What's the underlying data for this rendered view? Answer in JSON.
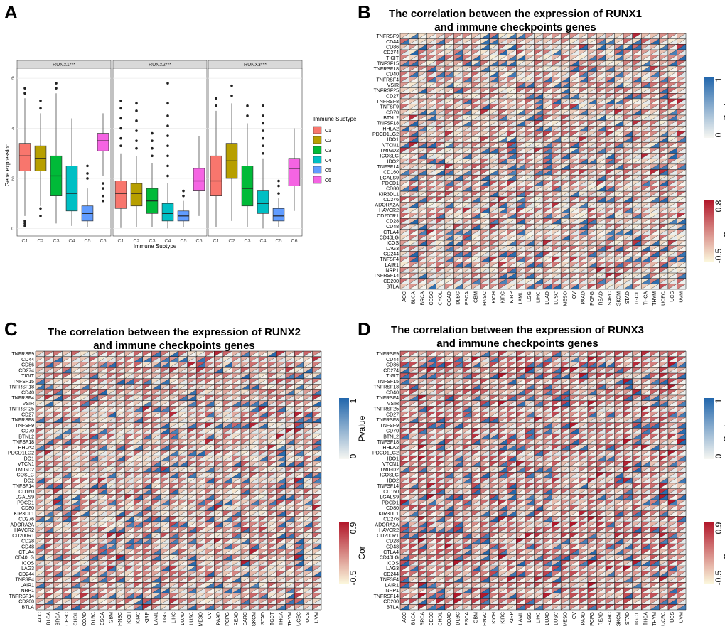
{
  "panels": {
    "A": "A",
    "B": "B",
    "C": "C",
    "D": "D"
  },
  "colors": {
    "subtypes": [
      "#f8766d",
      "#b79f00",
      "#00ba38",
      "#00bfc4",
      "#619cff",
      "#f564e3"
    ],
    "cor_high": "#b2182b",
    "cor_low": "#fbf7dc",
    "pvalue_high": "#2166ac",
    "pvalue_low": "#f7f7f2",
    "strip_bg": "#d9d9d9",
    "grid": "#ebebeb"
  },
  "chart_data": [
    {
      "type": "box",
      "ylabel": "Gene expression",
      "xlabel": "Immune Subtype",
      "ylim": [
        -0.3,
        6.4
      ],
      "yticks": [
        0,
        2,
        4,
        6
      ],
      "categories": [
        "C1",
        "C2",
        "C3",
        "C4",
        "C5",
        "C6"
      ],
      "legend": {
        "title": "Immune Subtype",
        "entries": [
          "C1",
          "C2",
          "C3",
          "C4",
          "C5",
          "C6"
        ],
        "position": "right"
      },
      "facets": [
        {
          "name": "RUNX1***",
          "boxes": [
            {
              "q1": 2.3,
              "median": 2.9,
              "q3": 3.4,
              "lo": 0.5,
              "hi": 5.2,
              "outliers": [
                0.1,
                0.2,
                0.3,
                5.4,
                5.6
              ]
            },
            {
              "q1": 2.3,
              "median": 2.8,
              "q3": 3.3,
              "lo": 0.9,
              "hi": 4.6,
              "outliers": [
                0.5,
                0.8,
                4.8,
                5.1
              ]
            },
            {
              "q1": 1.3,
              "median": 2.1,
              "q3": 2.9,
              "lo": 0.2,
              "hi": 5.4,
              "outliers": [
                5.6,
                5.8
              ]
            },
            {
              "q1": 0.7,
              "median": 1.4,
              "q3": 2.5,
              "lo": 0.1,
              "hi": 4.4,
              "outliers": []
            },
            {
              "q1": 0.3,
              "median": 0.6,
              "q3": 0.9,
              "lo": 0.05,
              "hi": 1.6,
              "outliers": [
                2.0,
                2.2,
                2.5
              ]
            },
            {
              "q1": 3.1,
              "median": 3.5,
              "q3": 3.8,
              "lo": 2.1,
              "hi": 4.6,
              "outliers": [
                1.1,
                1.3,
                1.6,
                1.8
              ]
            }
          ]
        },
        {
          "name": "RUNX2***",
          "boxes": [
            {
              "q1": 0.8,
              "median": 1.4,
              "q3": 1.9,
              "lo": 0.02,
              "hi": 3.0,
              "outliers": [
                3.3,
                3.6,
                4.0,
                4.4,
                4.8,
                5.1
              ]
            },
            {
              "q1": 0.9,
              "median": 1.4,
              "q3": 1.8,
              "lo": 0.05,
              "hi": 2.9,
              "outliers": [
                3.2,
                3.5,
                3.9,
                4.3,
                4.7,
                5.0
              ]
            },
            {
              "q1": 0.6,
              "median": 1.1,
              "q3": 1.6,
              "lo": 0.05,
              "hi": 2.6,
              "outliers": [
                2.9,
                3.2,
                3.5,
                3.8
              ]
            },
            {
              "q1": 0.3,
              "median": 0.6,
              "q3": 1.0,
              "lo": 0.0,
              "hi": 1.8,
              "outliers": [
                2.1,
                2.5,
                2.9,
                3.3,
                3.7,
                4.1,
                4.5,
                5.0,
                5.8
              ]
            },
            {
              "q1": 0.3,
              "median": 0.5,
              "q3": 0.7,
              "lo": 0.05,
              "hi": 1.1,
              "outliers": [
                1.3,
                1.5
              ]
            },
            {
              "q1": 1.5,
              "median": 1.9,
              "q3": 2.4,
              "lo": 0.5,
              "hi": 3.7,
              "outliers": []
            }
          ]
        },
        {
          "name": "RUNX3***",
          "boxes": [
            {
              "q1": 1.3,
              "median": 1.9,
              "q3": 2.9,
              "lo": 0.05,
              "hi": 4.7,
              "outliers": [
                4.9,
                5.2
              ]
            },
            {
              "q1": 2.0,
              "median": 2.7,
              "q3": 3.4,
              "lo": 0.3,
              "hi": 5.0,
              "outliers": [
                5.3,
                5.7
              ]
            },
            {
              "q1": 0.9,
              "median": 1.6,
              "q3": 2.5,
              "lo": 0.05,
              "hi": 4.2,
              "outliers": [
                4.5,
                4.9
              ]
            },
            {
              "q1": 0.6,
              "median": 1.0,
              "q3": 1.5,
              "lo": 0.0,
              "hi": 2.8,
              "outliers": [
                3.0,
                3.3,
                3.6,
                3.9,
                4.2,
                4.5,
                4.9
              ]
            },
            {
              "q1": 0.3,
              "median": 0.5,
              "q3": 0.8,
              "lo": 0.05,
              "hi": 1.2,
              "outliers": [
                1.4,
                1.7,
                1.9
              ]
            },
            {
              "q1": 1.7,
              "median": 2.4,
              "q3": 2.8,
              "lo": 0.7,
              "hi": 4.0,
              "outliers": []
            }
          ]
        }
      ]
    },
    {
      "type": "heatmap",
      "title_line1": "The correlation between the expression of RUNX1",
      "title_line2": "and immune checkpoints genes",
      "cor_range": [
        -0.5,
        0.8
      ],
      "cor_ticks": [
        "0.8",
        "-0.5"
      ],
      "pvalue_range": [
        0,
        1
      ],
      "pvalue_ticks": [
        "1",
        "0"
      ],
      "cbar_labels": [
        "Pvalue",
        "Cor"
      ]
    },
    {
      "type": "heatmap",
      "title_line1": "The correlation between the expression of RUNX2",
      "title_line2": "and immune checkpoints genes",
      "cor_range": [
        -0.5,
        0.9
      ],
      "cor_ticks": [
        "0.9",
        "-0.5"
      ],
      "pvalue_range": [
        0,
        1
      ],
      "pvalue_ticks": [
        "1",
        "0"
      ],
      "cbar_labels": [
        "Pvalue",
        "Cor"
      ]
    },
    {
      "type": "heatmap",
      "title_line1": "The correlation between the expression of RUNX3",
      "title_line2": "and immune checkpoints genes",
      "cor_range": [
        -0.5,
        0.9
      ],
      "cor_ticks": [
        "0.9",
        "-0.5"
      ],
      "pvalue_range": [
        0,
        1
      ],
      "pvalue_ticks": [
        "1",
        "0"
      ],
      "cbar_labels": [
        "Pvalue",
        "Cor"
      ]
    }
  ],
  "heatmap_rows": [
    "TNFRSF9",
    "CD44",
    "CD86",
    "CD274",
    "TIGIT",
    "TNFSF15",
    "TNFRSF18",
    "CD40",
    "TNFRSF4",
    "VSIR",
    "TNFRSF25",
    "CD27",
    "TNFRSF8",
    "TNFSF9",
    "CD70",
    "BTNL2",
    "TNFSF18",
    "HHLA2",
    "PDCD1LG2",
    "IDO1",
    "VTCN1",
    "TMIGD2",
    "ICOSLG",
    "IDO2",
    "TNFSF14",
    "CD160",
    "LGALS9",
    "PDCD1",
    "CD80",
    "KIR3DL1",
    "CD276",
    "ADORA2A",
    "HAVCR2",
    "CD200R1",
    "CD28",
    "CD48",
    "CTLA4",
    "CD40LG",
    "ICOS",
    "LAG3",
    "CD244",
    "TNFSF4",
    "LAIR1",
    "NRP1",
    "TNFRSF14",
    "CD200",
    "BTLA"
  ],
  "heatmap_cols": [
    "ACC",
    "BLCA",
    "BRCA",
    "CESC",
    "CHOL",
    "COAD",
    "DLBC",
    "ESCA",
    "GBM",
    "HNSC",
    "KICH",
    "KIRC",
    "KIRP",
    "LAML",
    "LGG",
    "LIHC",
    "LUAD",
    "LUSC",
    "MESO",
    "OV",
    "PAAD",
    "PCPG",
    "READ",
    "SARC",
    "SKCM",
    "STAD",
    "TGCT",
    "THCA",
    "THYM",
    "UCEC",
    "UCS",
    "UVM"
  ]
}
